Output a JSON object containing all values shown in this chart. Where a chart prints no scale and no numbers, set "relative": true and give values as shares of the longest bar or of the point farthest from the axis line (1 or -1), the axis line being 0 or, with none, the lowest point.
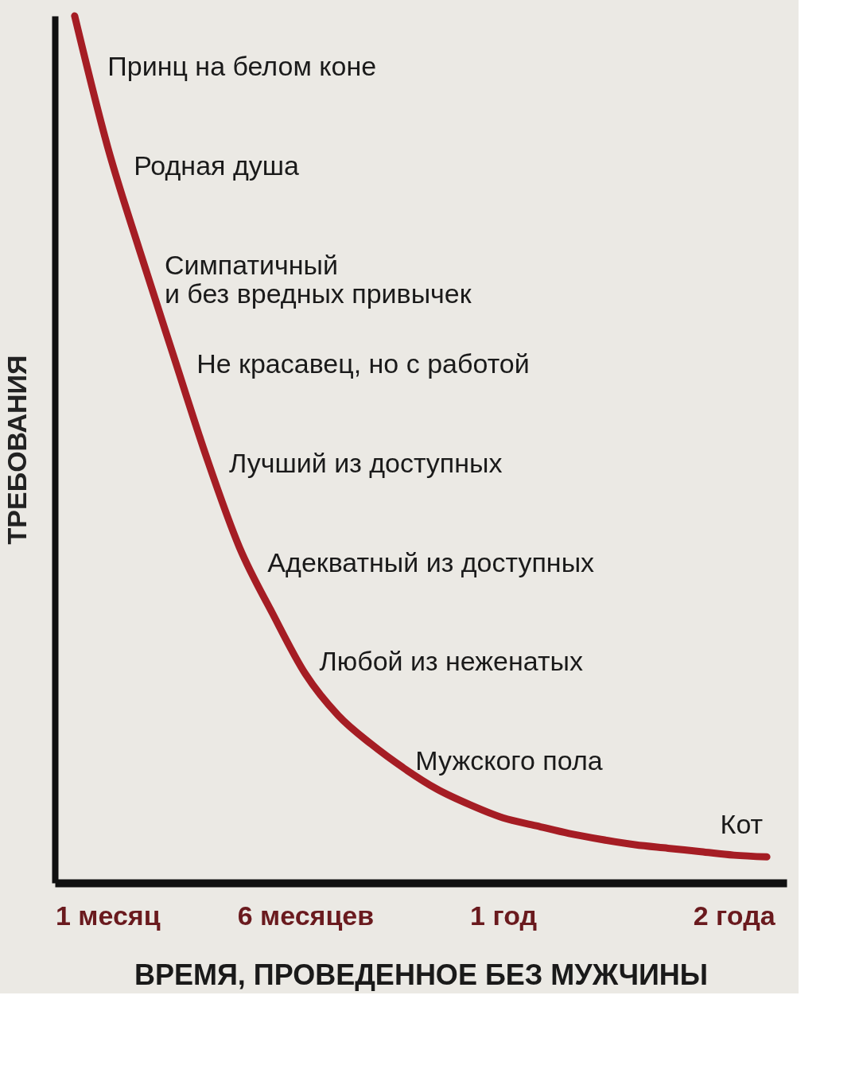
{
  "chart_data": {
    "type": "line",
    "relative": true,
    "xlabel": "ВРЕМЯ, ПРОВЕДЕННОЕ БЕЗ МУЖЧИНЫ",
    "ylabel": "ТРЕБОВАНИЯ",
    "categories": [
      null,
      "1 месяц",
      null,
      null,
      null,
      null,
      null,
      "6 месяцев",
      null,
      null,
      null,
      null,
      null,
      "1 год",
      null,
      null,
      null,
      null,
      null,
      null,
      "2 года",
      null
    ],
    "series": [
      {
        "color": "#a51d24",
        "values": [
          1,
          0.849,
          0.726,
          0.608,
          0.491,
          0.387,
          0.311,
          0.241,
          0.193,
          0.16,
          0.132,
          0.108,
          0.09,
          0.075,
          0.066,
          0.057,
          0.05,
          0.044,
          0.04,
          0.036,
          0.032,
          0.03
        ]
      }
    ],
    "annotations": [
      "Принц на белом коне",
      "Родная душа",
      "Симпатичный\nи без вредных привычек",
      "Не красавец, но с работой",
      "Лучший из доступных",
      "Адекватный из доступных",
      "Любой из неженатых",
      "Мужского пола",
      "Кот"
    ],
    "grid": false,
    "line_style": "solid",
    "marker": "none"
  }
}
